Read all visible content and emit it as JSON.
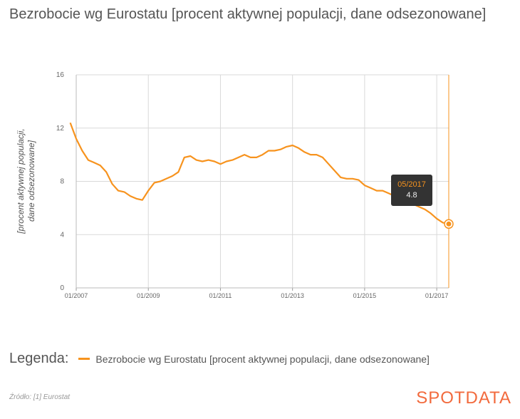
{
  "header": {
    "title": "Bezrobocie wg Eurostatu [procent aktywnej populacji, dane odsezonowane]"
  },
  "chart_data": {
    "type": "line",
    "title": "Bezrobocie wg Eurostatu [procent aktywnej populacji, dane odsezonowane]",
    "xlabel": "",
    "ylabel": "[procent aktywnej populacji, dane odsezonowane]",
    "ylim": [
      0,
      16
    ],
    "y_ticks": [
      "0",
      "4",
      "8",
      "12",
      "16"
    ],
    "x_ticks": [
      "01/2007",
      "01/2009",
      "01/2011",
      "01/2013",
      "01/2015",
      "01/2017"
    ],
    "grid": true,
    "color": "#f7931e",
    "series": [
      {
        "name": "Bezrobocie wg Eurostatu [procent aktywnej populacji, dane odsezonowane]",
        "x": [
          "2006-11",
          "2007-01",
          "2007-03",
          "2007-05",
          "2007-07",
          "2007-09",
          "2007-11",
          "2008-01",
          "2008-03",
          "2008-05",
          "2008-07",
          "2008-09",
          "2008-11",
          "2009-01",
          "2009-03",
          "2009-05",
          "2009-07",
          "2009-09",
          "2009-11",
          "2010-01",
          "2010-03",
          "2010-05",
          "2010-07",
          "2010-09",
          "2010-11",
          "2011-01",
          "2011-03",
          "2011-05",
          "2011-07",
          "2011-09",
          "2011-11",
          "2012-01",
          "2012-03",
          "2012-05",
          "2012-07",
          "2012-09",
          "2012-11",
          "2013-01",
          "2013-03",
          "2013-05",
          "2013-07",
          "2013-09",
          "2013-11",
          "2014-01",
          "2014-03",
          "2014-05",
          "2014-07",
          "2014-09",
          "2014-11",
          "2015-01",
          "2015-03",
          "2015-05",
          "2015-07",
          "2015-09",
          "2015-11",
          "2016-01",
          "2016-03",
          "2016-05",
          "2016-07",
          "2016-09",
          "2016-11",
          "2017-01",
          "2017-03",
          "2017-05"
        ],
        "y": [
          12.4,
          11.2,
          10.3,
          9.6,
          9.4,
          9.2,
          8.7,
          7.8,
          7.3,
          7.2,
          6.9,
          6.7,
          6.6,
          7.3,
          7.9,
          8.0,
          8.2,
          8.4,
          8.7,
          9.8,
          9.9,
          9.6,
          9.5,
          9.6,
          9.5,
          9.3,
          9.5,
          9.6,
          9.8,
          10.0,
          9.8,
          9.8,
          10.0,
          10.3,
          10.3,
          10.4,
          10.6,
          10.7,
          10.5,
          10.2,
          10.0,
          10.0,
          9.8,
          9.3,
          8.8,
          8.3,
          8.2,
          8.2,
          8.1,
          7.7,
          7.5,
          7.3,
          7.3,
          7.1,
          6.9,
          6.7,
          6.5,
          6.3,
          6.1,
          5.9,
          5.6,
          5.2,
          4.9,
          4.8
        ]
      }
    ],
    "tooltip": {
      "date": "05/2017",
      "value": "4.8"
    }
  },
  "legend": {
    "title": "Legenda:",
    "label": "Bezrobocie wg Eurostatu [procent aktywnej populacji, dane odsezonowane]"
  },
  "footer": {
    "source": "Źródło: [1] Eurostat",
    "brand": "SPOTDATA"
  }
}
